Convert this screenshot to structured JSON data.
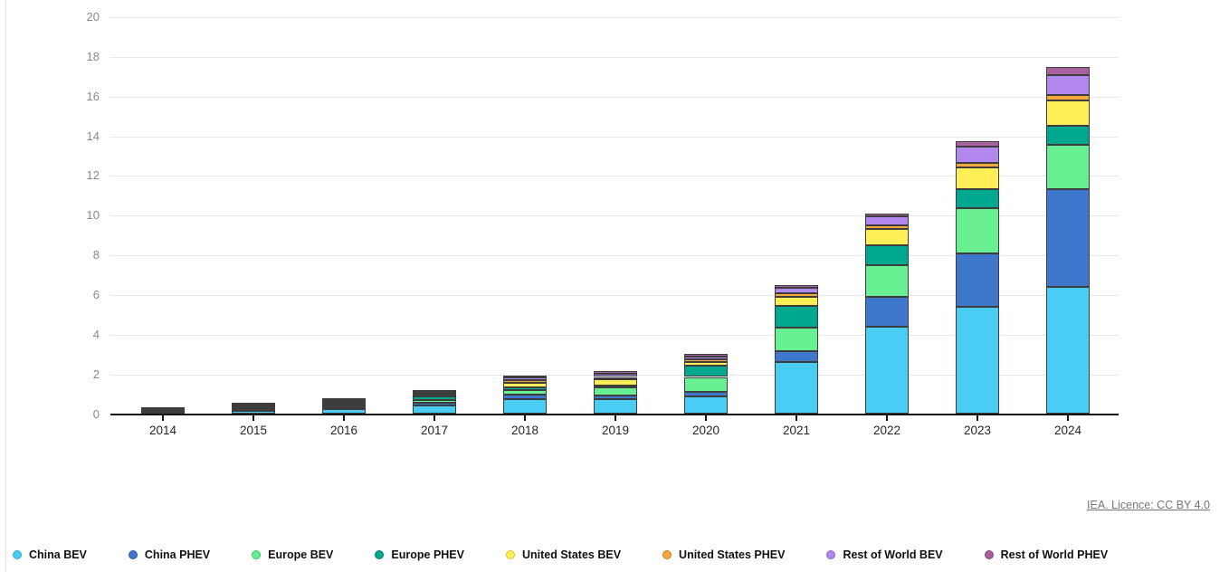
{
  "page": {
    "background": "#ffffff",
    "card_edge_color": "#e2e2e2"
  },
  "footer": {
    "licence_label": "IEA. Licence: CC BY 4.0"
  },
  "chart_data": {
    "type": "bar",
    "stacked": true,
    "title": "",
    "xlabel": "",
    "ylabel": "",
    "ylim": [
      0,
      20
    ],
    "yticks": [
      "0",
      "2",
      "4",
      "6",
      "8",
      "10",
      "12",
      "14",
      "16",
      "18",
      "20"
    ],
    "grid": true,
    "legend_position": "bottom",
    "categories": [
      "2014",
      "2015",
      "2016",
      "2017",
      "2018",
      "2019",
      "2020",
      "2021",
      "2022",
      "2023",
      "2024"
    ],
    "series": [
      {
        "name": "China BEV",
        "color": "#49cdf5",
        "ring": "#2da3d4",
        "values": [
          0.05,
          0.15,
          0.26,
          0.45,
          0.75,
          0.77,
          0.88,
          2.63,
          4.39,
          5.41,
          6.43
        ]
      },
      {
        "name": "China PHEV",
        "color": "#3e77cc",
        "ring": "#2c56a0",
        "values": [
          0.02,
          0.06,
          0.08,
          0.11,
          0.25,
          0.18,
          0.23,
          0.53,
          1.52,
          2.69,
          4.9
        ]
      },
      {
        "name": "Europe BEV",
        "color": "#67ef91",
        "ring": "#3dbf68",
        "values": [
          0.06,
          0.1,
          0.1,
          0.15,
          0.2,
          0.38,
          0.76,
          1.21,
          1.61,
          2.28,
          2.25
        ]
      },
      {
        "name": "Europe PHEV",
        "color": "#00a88f",
        "ring": "#007a68",
        "values": [
          0.04,
          0.09,
          0.1,
          0.16,
          0.15,
          0.12,
          0.57,
          1.07,
          1.0,
          0.96,
          0.96
        ]
      },
      {
        "name": "United States BEV",
        "color": "#ffee55",
        "ring": "#d6c22e",
        "values": [
          0.06,
          0.07,
          0.09,
          0.1,
          0.22,
          0.31,
          0.2,
          0.46,
          0.79,
          1.1,
          1.25
        ]
      },
      {
        "name": "United States PHEV",
        "color": "#f6a83d",
        "ring": "#c97f1e",
        "values": [
          0.07,
          0.05,
          0.08,
          0.1,
          0.13,
          0.11,
          0.12,
          0.2,
          0.18,
          0.23,
          0.31
        ]
      },
      {
        "name": "Rest of World BEV",
        "color": "#b288ee",
        "ring": "#8a63c9",
        "values": [
          0.04,
          0.04,
          0.05,
          0.09,
          0.15,
          0.16,
          0.15,
          0.26,
          0.46,
          0.82,
          0.96
        ]
      },
      {
        "name": "Rest of World PHEV",
        "color": "#a9619e",
        "ring": "#7e4276",
        "values": [
          0.02,
          0.03,
          0.04,
          0.06,
          0.1,
          0.12,
          0.12,
          0.16,
          0.16,
          0.27,
          0.41
        ]
      }
    ]
  }
}
